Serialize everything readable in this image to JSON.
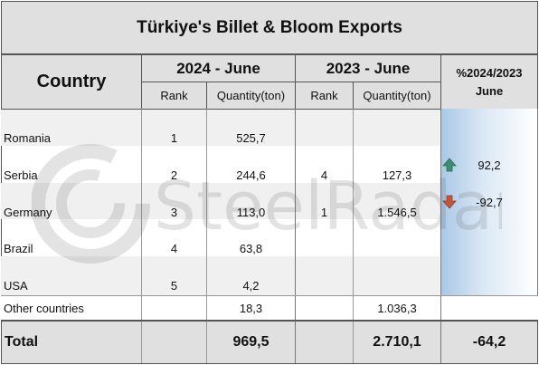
{
  "title": "Türkiye's Billet & Bloom Exports",
  "headers": {
    "country": "Country",
    "group_2024": "2024 - June",
    "group_2023": "2023 - June",
    "rank": "Rank",
    "quantity": "Quantity(ton)",
    "pct_line1": "%2024/2023",
    "pct_line2": "June"
  },
  "rows": [
    {
      "country": "Romania",
      "rank_2024": "1",
      "qty_2024": "525,7",
      "rank_2023": "",
      "qty_2023": "",
      "pct": ""
    },
    {
      "country": "Serbia",
      "rank_2024": "2",
      "qty_2024": "244,6",
      "rank_2023": "4",
      "qty_2023": "127,3",
      "pct": "92,2"
    },
    {
      "country": "Germany",
      "rank_2024": "3",
      "qty_2024": "113,0",
      "rank_2023": "1",
      "qty_2023": "1.546,5",
      "pct": "-92,7"
    },
    {
      "country": "Brazil",
      "rank_2024": "4",
      "qty_2024": "63,8",
      "rank_2023": "",
      "qty_2023": "",
      "pct": ""
    },
    {
      "country": "USA",
      "rank_2024": "5",
      "qty_2024": "4,2",
      "rank_2023": "",
      "qty_2023": "",
      "pct": ""
    }
  ],
  "other": {
    "label": "Other countries",
    "qty_2024": "18,3",
    "qty_2023": "1.036,3"
  },
  "total": {
    "label": "Total",
    "qty_2024": "969,5",
    "qty_2023": "2.710,1",
    "pct": "-64,2"
  },
  "watermark": "SteelRadar",
  "colors": {
    "up_arrow": "#3c8f6e",
    "down_arrow": "#c0573b",
    "header_bg": "#e0e0e0",
    "accent_gradient": "#a9c8e6"
  },
  "icons": {
    "increase": "arrow-up-icon",
    "decrease": "arrow-down-icon"
  }
}
